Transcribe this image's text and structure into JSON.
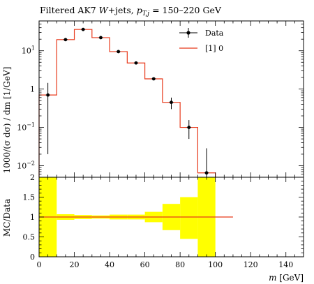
{
  "chart_data": {
    "type": "line",
    "title": "Filtered AK7 W+jets, p_T,j = 150–220 GeV",
    "title_parts": {
      "prefix": "Filtered AK7 ",
      "w": "W",
      "mid": "+jets, ",
      "p": "p",
      "sub": "T,j",
      "range": " = 150–220 GeV"
    },
    "xlabel": {
      "var": "m",
      "unit": " [GeV]"
    },
    "ylabel": "1000/(σ dσ) / dm [1/GeV]",
    "ratio_ylabel": "MC/Data",
    "xlim": [
      0,
      150
    ],
    "ylim_log": [
      0.005,
      60
    ],
    "ratio_ylim": [
      0,
      2
    ],
    "x_ticks": [
      "0",
      "20",
      "40",
      "60",
      "80",
      "100",
      "120",
      "140"
    ],
    "y_ticks": [
      {
        "value": 10,
        "base": "10",
        "exp": "1"
      },
      {
        "value": 1,
        "base": "1",
        "exp": ""
      },
      {
        "value": 0.1,
        "base": "10",
        "exp": "−1"
      },
      {
        "value": 0.01,
        "base": "10",
        "exp": "−2"
      }
    ],
    "ratio_ticks": [
      "0",
      "0.5",
      "1",
      "1.5",
      "2"
    ],
    "legend": {
      "position": "top-right",
      "data_label": "Data",
      "mc_label": "[1] 0"
    },
    "data": {
      "name": "Data",
      "x": [
        5,
        15,
        25,
        35,
        45,
        55,
        65,
        75,
        85,
        95
      ],
      "y": [
        0.7,
        19.5,
        36,
        22,
        9.5,
        4.8,
        1.85,
        0.45,
        0.1,
        0.0065
      ],
      "yerr_low": [
        0.68,
        1.0,
        1.5,
        1.0,
        0.6,
        0.3,
        0.15,
        0.15,
        0.05,
        0.0055
      ],
      "yerr_high": [
        0.75,
        1.0,
        1.5,
        1.0,
        0.6,
        0.3,
        0.15,
        0.15,
        0.055,
        0.022
      ],
      "color": "#000000"
    },
    "mc": {
      "name": "[1] 0",
      "edges": [
        0,
        10,
        20,
        30,
        40,
        50,
        60,
        70,
        80,
        90,
        100
      ],
      "values": [
        0.7,
        19.5,
        36,
        22,
        9.5,
        4.8,
        1.85,
        0.45,
        0.1,
        0.0065
      ],
      "color": "#e8391b"
    },
    "ratio": {
      "line_x": [
        0,
        110
      ],
      "line_value": 1.0,
      "band_color": "#ffff00",
      "band_edges": [
        0,
        10,
        20,
        30,
        40,
        50,
        60,
        70,
        80,
        90,
        100
      ],
      "band_low": [
        0.0,
        0.93,
        0.95,
        0.96,
        0.94,
        0.94,
        0.87,
        0.67,
        0.45,
        0.0
      ],
      "band_high": [
        2.0,
        1.07,
        1.05,
        1.04,
        1.06,
        1.06,
        1.13,
        1.33,
        1.5,
        2.0
      ]
    }
  }
}
